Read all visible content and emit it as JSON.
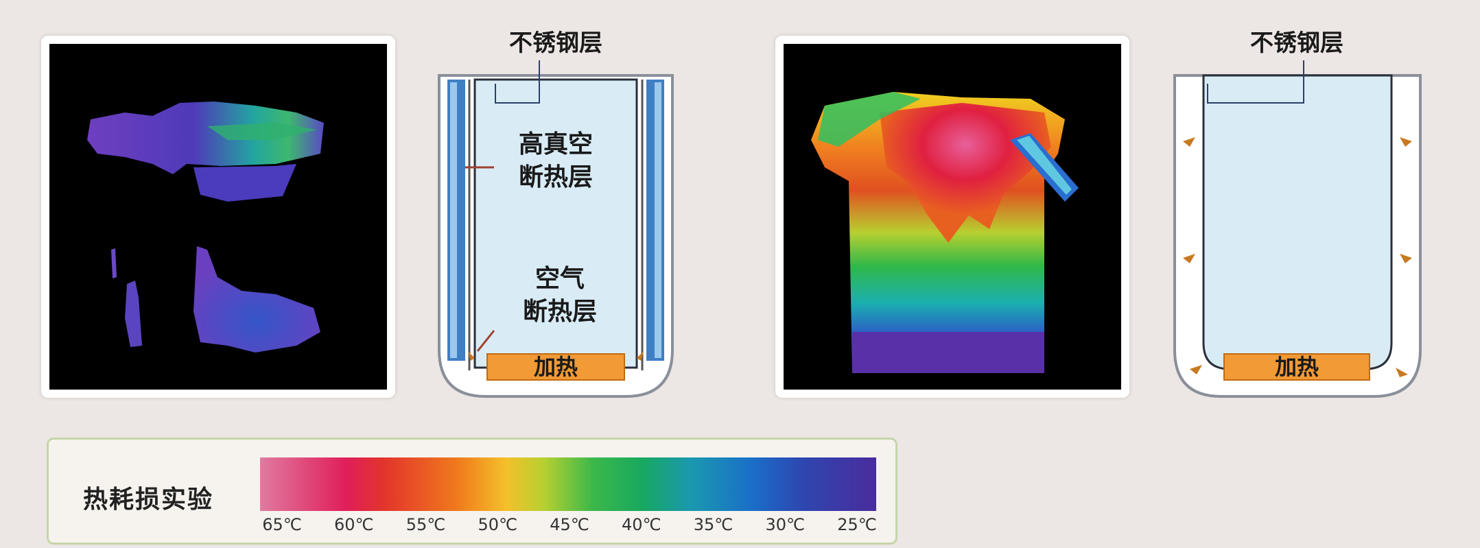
{
  "diagram_left": {
    "top_label": "不锈钢层",
    "vacuum_label_line1": "高真空",
    "vacuum_label_line2": "断热层",
    "air_label_line1": "空气",
    "air_label_line2": "断热层",
    "heater_label": "加热"
  },
  "diagram_right": {
    "top_label": "不锈钢层",
    "heater_label": "加热"
  },
  "legend": {
    "title": "热耗损实验",
    "ticks": [
      "65℃",
      "60℃",
      "55℃",
      "50℃",
      "45℃",
      "40℃",
      "35℃",
      "30℃",
      "25℃"
    ]
  },
  "colors": {
    "background": "#ece6e4",
    "inner_fill": "#d9ecf6",
    "heater": "#f29a36",
    "legend_border": "#c6d5a8"
  }
}
